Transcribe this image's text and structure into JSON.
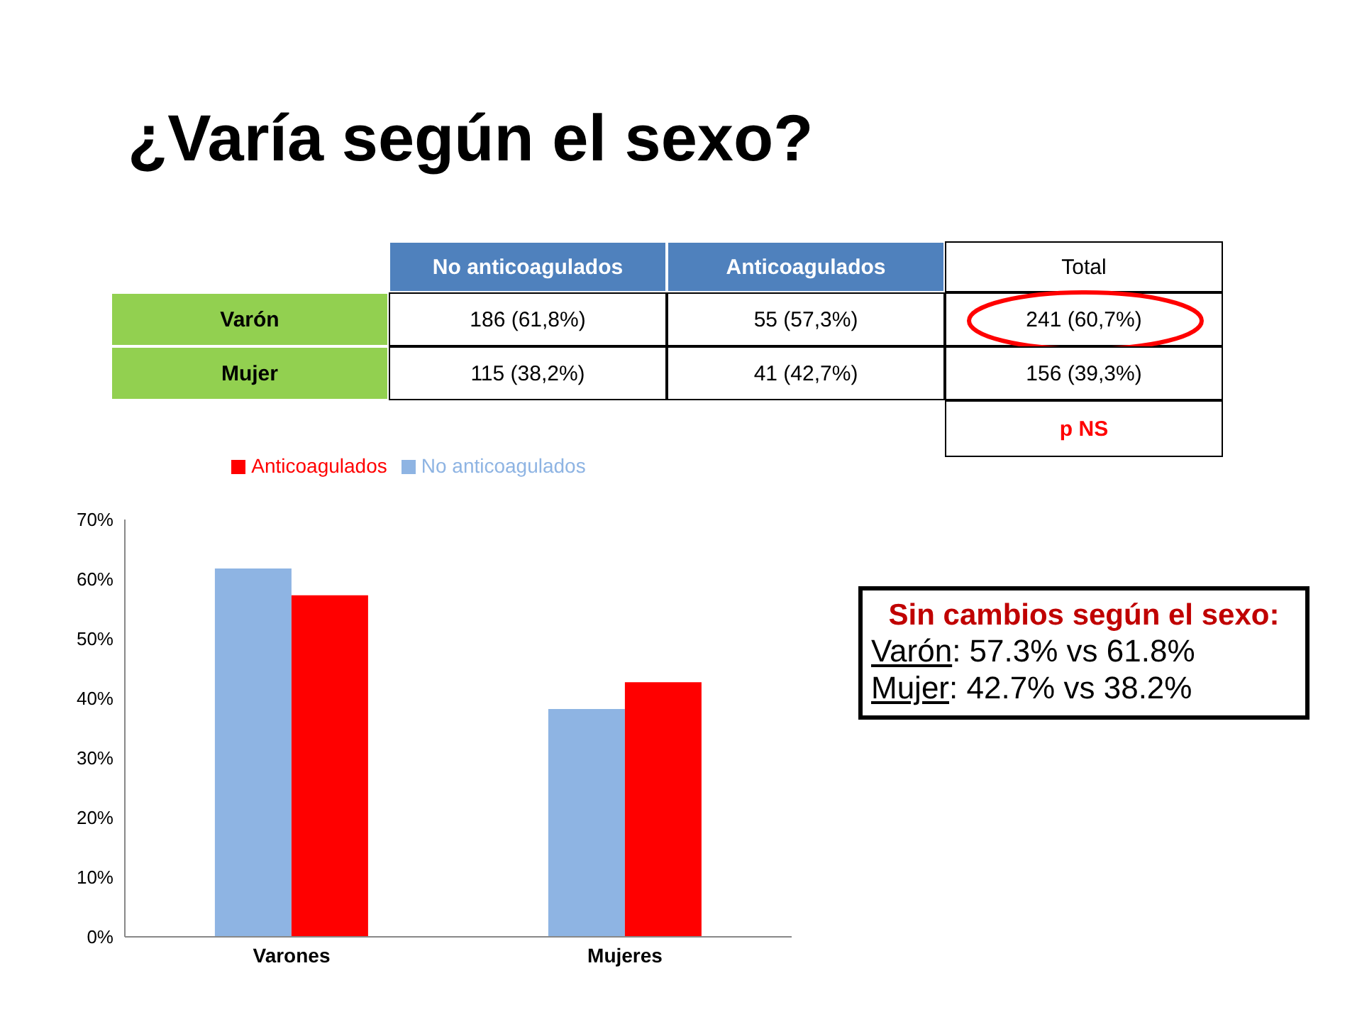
{
  "chart_data": {
    "type": "bar",
    "title": "¿Varía según el sexo?",
    "categories": [
      "Varones",
      "Mujeres"
    ],
    "series": [
      {
        "name": "No anticoagulados",
        "color": "#8eb4e3",
        "values": [
          61.8,
          38.2
        ]
      },
      {
        "name": "Anticoagulados",
        "color": "#ff0000",
        "values": [
          57.3,
          42.7
        ]
      }
    ],
    "ylim": [
      0,
      70
    ],
    "yticks": [
      {
        "value": 0,
        "label": "0%"
      },
      {
        "value": 10,
        "label": "10%"
      },
      {
        "value": 20,
        "label": "20%"
      },
      {
        "value": 30,
        "label": "30%"
      },
      {
        "value": 40,
        "label": "40%"
      },
      {
        "value": 50,
        "label": "50%"
      },
      {
        "value": 60,
        "label": "60%"
      },
      {
        "value": 70,
        "label": "70%"
      }
    ],
    "grid": false,
    "legend": "top",
    "annotations": [
      "No anticoagulados",
      "Anticoagulados",
      "Total",
      "Varón",
      "186 (61,8%)",
      "55 (57,3%)",
      "241 (60,7%)",
      "Mujer",
      "115 (38,2%)",
      "41 (42,7%)",
      "156 (39,3%)",
      "p NS",
      "Sin cambios según el sexo:",
      "Varón: 57.3% vs 61.8%",
      "Mujer: 42.7% vs 38.2%"
    ]
  }
}
